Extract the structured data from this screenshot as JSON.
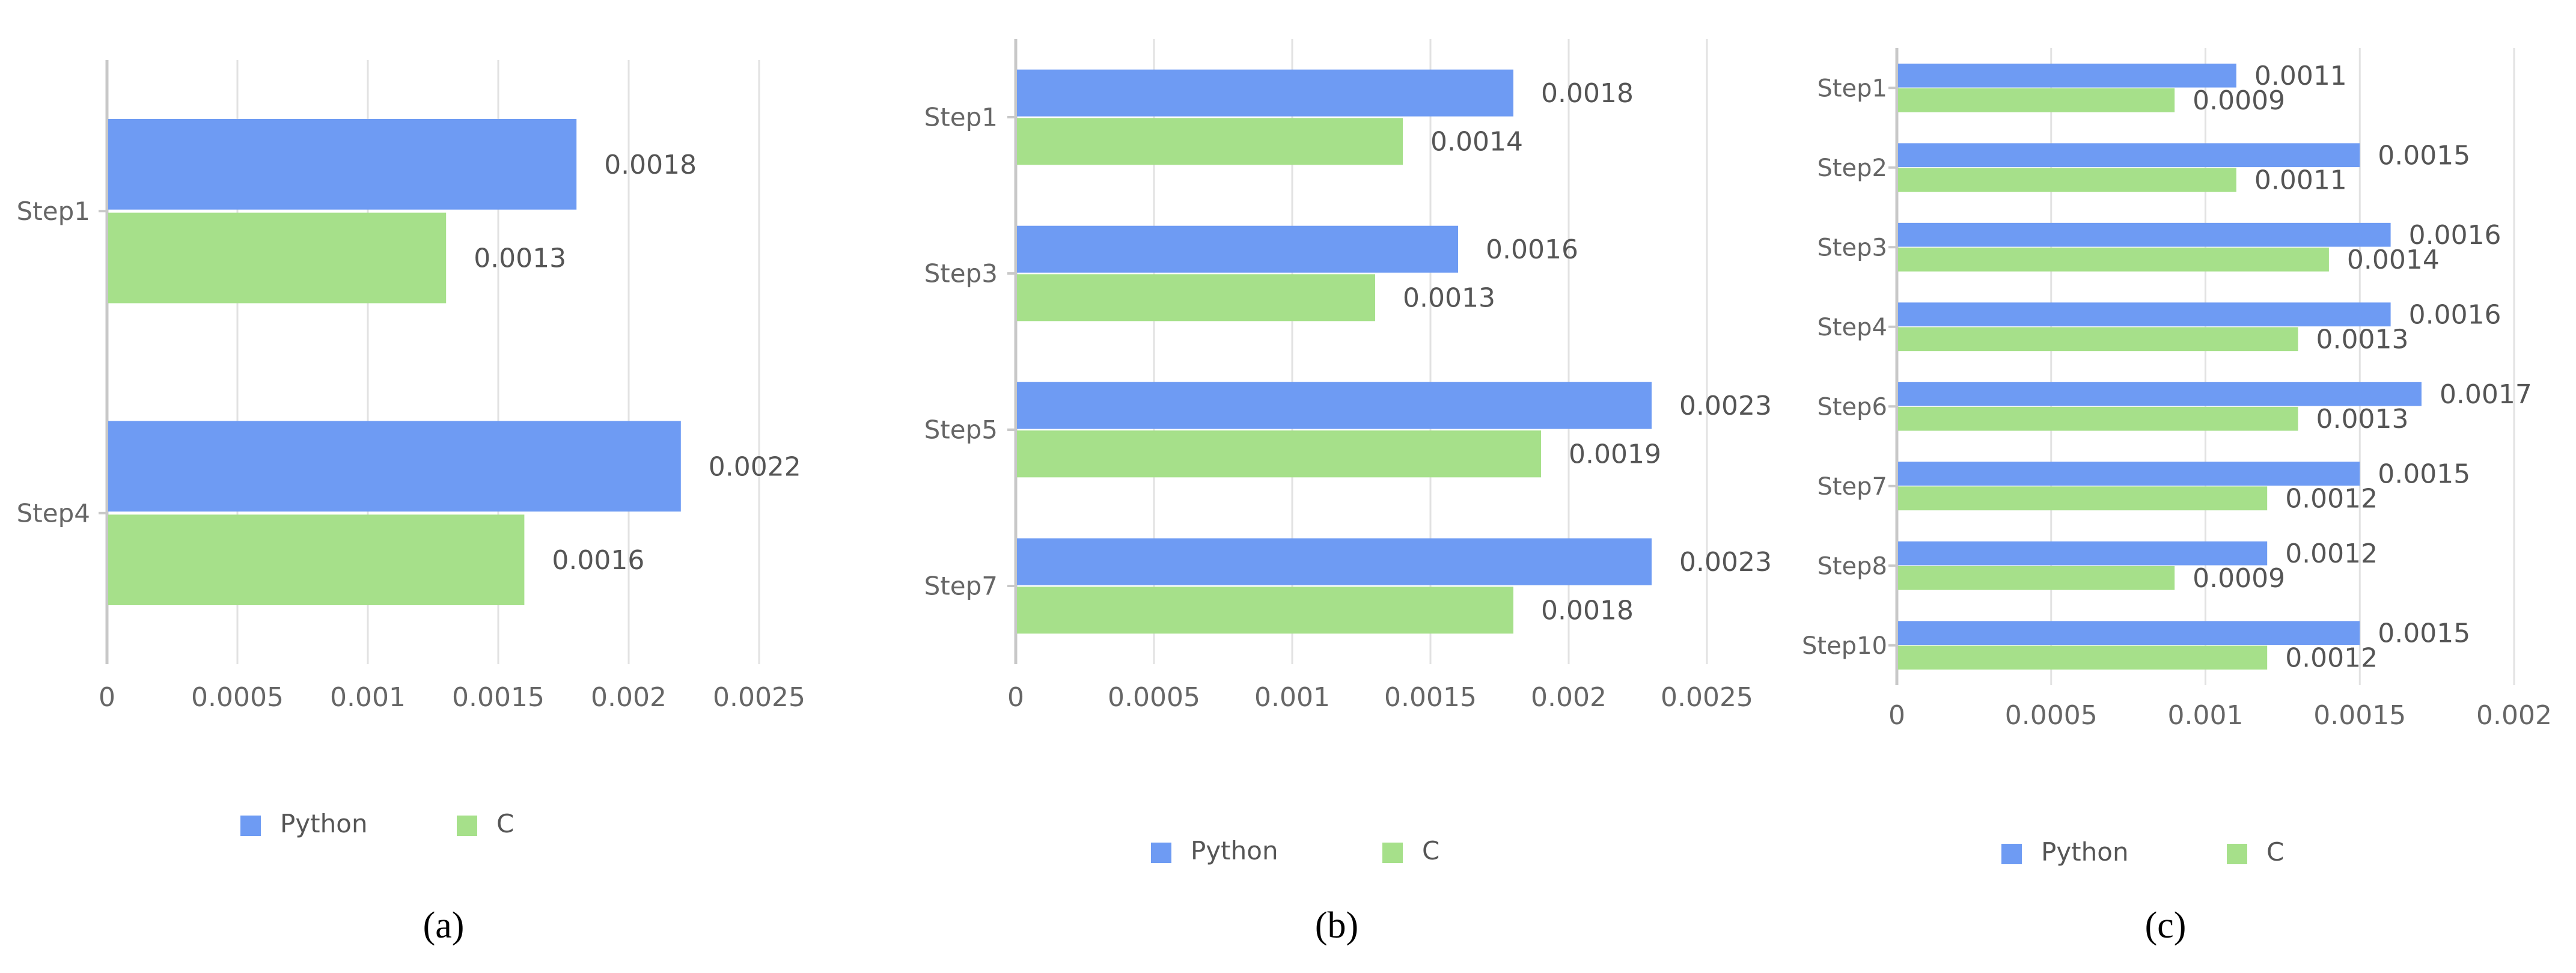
{
  "colors": {
    "python": "#6e9bf3",
    "c": "#a6e08a",
    "grid": "#e2e2e2",
    "axis": "#c8c8c8"
  },
  "chart_data": [
    {
      "type": "bar",
      "orientation": "horizontal",
      "caption": "(a)",
      "caption_letter": "a",
      "categories": [
        "Step1",
        "Step4"
      ],
      "series": [
        {
          "name": "Python",
          "values": [
            0.0018,
            0.0022
          ],
          "labels": [
            "0.0018",
            "0.0022"
          ]
        },
        {
          "name": "C",
          "values": [
            0.0013,
            0.0016
          ],
          "labels": [
            "0.0013",
            "0.0016"
          ]
        }
      ],
      "xlim": [
        0,
        0.0025
      ],
      "xticks": [
        "0",
        "0.0005",
        "0.001",
        "0.0015",
        "0.002",
        "0.0025"
      ],
      "grid": true,
      "legend": "bottom-center"
    },
    {
      "type": "bar",
      "orientation": "horizontal",
      "caption": "(b)",
      "caption_letter": "b",
      "categories": [
        "Step1",
        "Step3",
        "Step5",
        "Step7"
      ],
      "series": [
        {
          "name": "Python",
          "values": [
            0.0018,
            0.0016,
            0.0023,
            0.0023
          ],
          "labels": [
            "0.0018",
            "0.0016",
            "0.0023",
            "0.0023"
          ]
        },
        {
          "name": "C",
          "values": [
            0.0014,
            0.0013,
            0.0019,
            0.0018
          ],
          "labels": [
            "0.0014",
            "0.0013",
            "0.0019",
            "0.0018"
          ]
        }
      ],
      "xlim": [
        0,
        0.0025
      ],
      "xticks": [
        "0",
        "0.0005",
        "0.001",
        "0.0015",
        "0.002",
        "0.0025"
      ],
      "grid": true,
      "legend": "bottom-center"
    },
    {
      "type": "bar",
      "orientation": "horizontal",
      "caption": "(c)",
      "caption_letter": "c",
      "categories": [
        "Step1",
        "Step2",
        "Step3",
        "Step4",
        "Step6",
        "Step7",
        "Step8",
        "Step10"
      ],
      "series": [
        {
          "name": "Python",
          "values": [
            0.0011,
            0.0015,
            0.0016,
            0.0016,
            0.0017,
            0.0015,
            0.0012,
            0.0015
          ],
          "labels": [
            "0.0011",
            "0.0015",
            "0.0016",
            "0.0016",
            "0.0017",
            "0.0015",
            "0.0012",
            "0.0015"
          ]
        },
        {
          "name": "C",
          "values": [
            0.0009,
            0.0011,
            0.0014,
            0.0013,
            0.0013,
            0.0012,
            0.0009,
            0.0012
          ],
          "labels": [
            "0.0009",
            "0.0011",
            "0.0014",
            "0.0013",
            "0.0013",
            "0.0012",
            "0.0009",
            "0.0012"
          ]
        }
      ],
      "xlim": [
        0,
        0.002
      ],
      "xticks": [
        "0",
        "0.0005",
        "0.001",
        "0.0015",
        "0.002"
      ],
      "grid": true,
      "legend": "bottom-center"
    }
  ]
}
